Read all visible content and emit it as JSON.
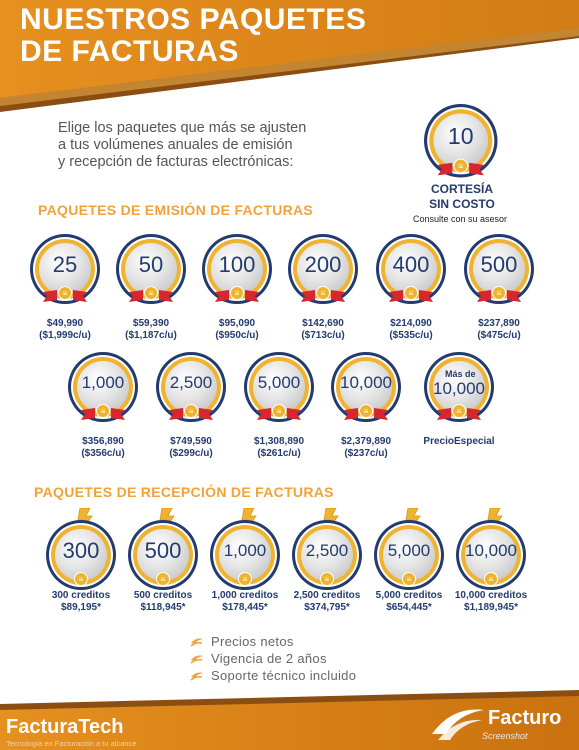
{
  "header": {
    "title_line1": "NUESTROS PAQUETES",
    "title_line2": "DE FACTURAS"
  },
  "intro": {
    "line1": "Elige los paquetes que más se ajusten",
    "line2": "a tus volúmenes anuales de emisión",
    "line3": "y recepción de facturas electrónicas:"
  },
  "cortesia": {
    "value": "10",
    "title1": "CORTESÍA",
    "title2": "SIN COSTO",
    "subtitle": "Consulte con su asesor"
  },
  "emision": {
    "title": "PAQUETES DE EMISIÓN DE FACTURAS",
    "row1": [
      {
        "value": "25",
        "price": "$49,990",
        "unit": "($1,999c/u)"
      },
      {
        "value": "50",
        "price": "$59,390",
        "unit": "($1,187c/u)"
      },
      {
        "value": "100",
        "price": "$95,090",
        "unit": "($950c/u)"
      },
      {
        "value": "200",
        "price": "$142,690",
        "unit": "($713c/u)"
      },
      {
        "value": "400",
        "price": "$214,090",
        "unit": "($535c/u)"
      },
      {
        "value": "500",
        "price": "$237,890",
        "unit": "($475c/u)"
      }
    ],
    "row2": [
      {
        "value": "1,000",
        "price": "$356,890",
        "unit": "($356c/u)"
      },
      {
        "value": "2,500",
        "price": "$749,590",
        "unit": "($299c/u)"
      },
      {
        "value": "5,000",
        "price": "$1,308,890",
        "unit": "($261c/u)"
      },
      {
        "value": "10,000",
        "price": "$2,379,890",
        "unit": "($237c/u)"
      },
      {
        "value": "10,000",
        "prefix": "Más de",
        "price": "PrecioEspecial",
        "unit": ""
      }
    ]
  },
  "recepcion": {
    "title": "PAQUETES DE RECEPCIÓN DE FACTURAS",
    "items": [
      {
        "value": "300",
        "credits": "300 creditos",
        "price": "$89,195*"
      },
      {
        "value": "500",
        "credits": "500 creditos",
        "price": "$118,945*"
      },
      {
        "value": "1,000",
        "credits": "1,000 creditos",
        "price": "$178,445*"
      },
      {
        "value": "2,500",
        "credits": "2,500 creditos",
        "price": "$374,795*"
      },
      {
        "value": "5,000",
        "credits": "5,000 creditos",
        "price": "$654,445*"
      },
      {
        "value": "10,000",
        "credits": "10,000 creditos",
        "price": "$1,189,945*"
      }
    ]
  },
  "benefits": [
    "Precios netos",
    "Vigencia de 2 años",
    "Soporte técnico incluido"
  ],
  "footer": {
    "left_logo": "FacturaTech",
    "left_tagline": "Tecnología en Facturación a tu alcance",
    "right_logo": "Facturo",
    "right_sub": "Screenshot"
  },
  "colors": {
    "orange": "#e6901f",
    "brown": "#8a4e12",
    "navy": "#233b6e",
    "gold": "#f0b32f",
    "red": "#d8262e"
  }
}
